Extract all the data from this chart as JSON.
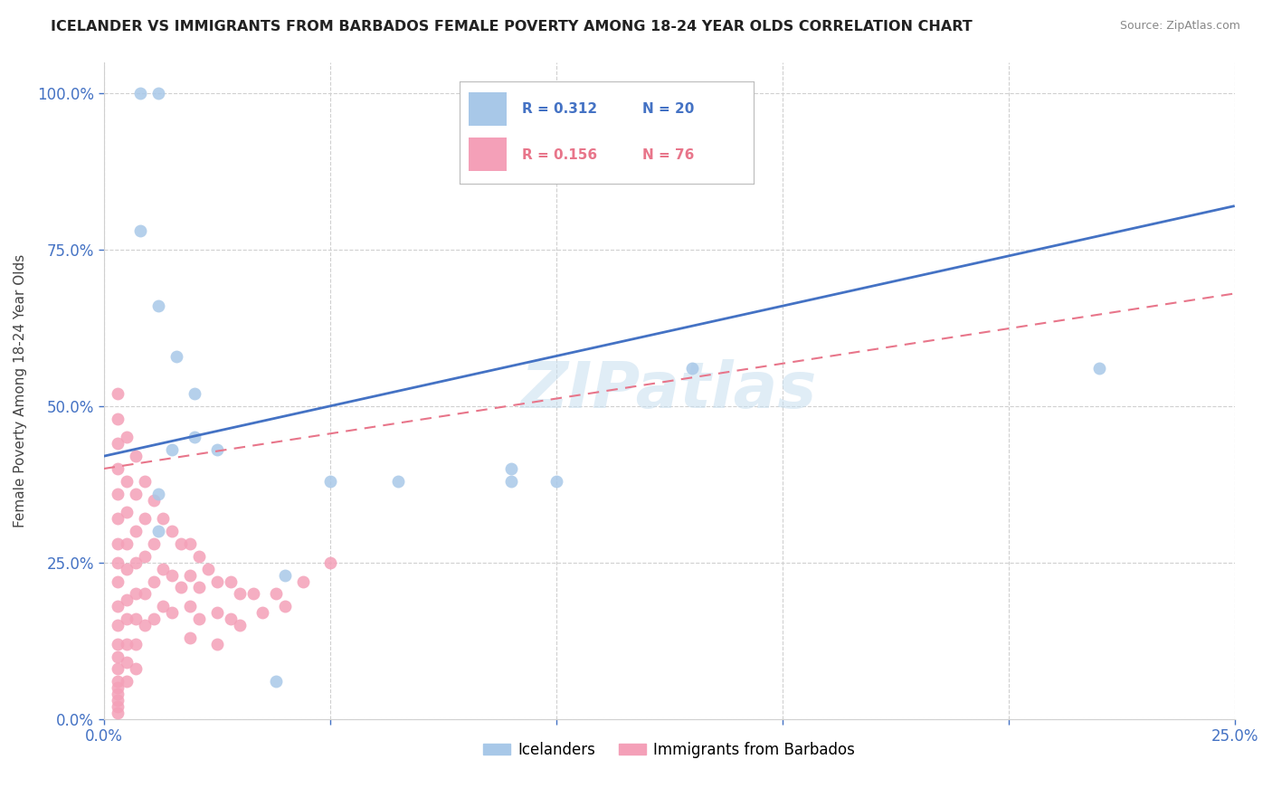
{
  "title": "ICELANDER VS IMMIGRANTS FROM BARBADOS FEMALE POVERTY AMONG 18-24 YEAR OLDS CORRELATION CHART",
  "source": "Source: ZipAtlas.com",
  "ylabel": "Female Poverty Among 18-24 Year Olds",
  "xlim": [
    0.0,
    0.25
  ],
  "ylim": [
    0.0,
    1.05
  ],
  "yticks": [
    0.0,
    0.25,
    0.5,
    0.75,
    1.0
  ],
  "xticks": [
    0.0,
    0.05,
    0.1,
    0.15,
    0.2,
    0.25
  ],
  "ytick_labels": [
    "0.0%",
    "25.0%",
    "50.0%",
    "75.0%",
    "100.0%"
  ],
  "xtick_labels": [
    "0.0%",
    "",
    "",
    "",
    "",
    "25.0%"
  ],
  "icelander_color": "#a8c8e8",
  "barbados_color": "#f4a0b8",
  "trendline_icelander_color": "#4472c4",
  "trendline_barbados_color": "#e8758a",
  "watermark": "ZIPatlas",
  "icelander_x": [
    0.008,
    0.012,
    0.008,
    0.012,
    0.016,
    0.02,
    0.02,
    0.025,
    0.015,
    0.012,
    0.012,
    0.1,
    0.13,
    0.09,
    0.09,
    0.04,
    0.05,
    0.065,
    0.22,
    0.038
  ],
  "icelander_y": [
    1.0,
    1.0,
    0.78,
    0.66,
    0.58,
    0.52,
    0.45,
    0.43,
    0.43,
    0.36,
    0.3,
    0.38,
    0.56,
    0.38,
    0.4,
    0.23,
    0.38,
    0.38,
    0.56,
    0.06
  ],
  "barbados_x": [
    0.003,
    0.003,
    0.003,
    0.003,
    0.003,
    0.003,
    0.003,
    0.003,
    0.003,
    0.003,
    0.003,
    0.003,
    0.003,
    0.003,
    0.003,
    0.003,
    0.003,
    0.003,
    0.003,
    0.003,
    0.005,
    0.005,
    0.005,
    0.005,
    0.005,
    0.005,
    0.005,
    0.005,
    0.005,
    0.005,
    0.007,
    0.007,
    0.007,
    0.007,
    0.007,
    0.007,
    0.007,
    0.007,
    0.009,
    0.009,
    0.009,
    0.009,
    0.009,
    0.011,
    0.011,
    0.011,
    0.011,
    0.013,
    0.013,
    0.013,
    0.015,
    0.015,
    0.015,
    0.017,
    0.017,
    0.019,
    0.019,
    0.019,
    0.019,
    0.021,
    0.021,
    0.021,
    0.023,
    0.025,
    0.025,
    0.025,
    0.028,
    0.028,
    0.03,
    0.03,
    0.033,
    0.035,
    0.038,
    0.04,
    0.044,
    0.05
  ],
  "barbados_y": [
    0.52,
    0.48,
    0.44,
    0.4,
    0.36,
    0.32,
    0.28,
    0.25,
    0.22,
    0.18,
    0.15,
    0.12,
    0.1,
    0.08,
    0.06,
    0.05,
    0.04,
    0.03,
    0.02,
    0.01,
    0.45,
    0.38,
    0.33,
    0.28,
    0.24,
    0.19,
    0.16,
    0.12,
    0.09,
    0.06,
    0.42,
    0.36,
    0.3,
    0.25,
    0.2,
    0.16,
    0.12,
    0.08,
    0.38,
    0.32,
    0.26,
    0.2,
    0.15,
    0.35,
    0.28,
    0.22,
    0.16,
    0.32,
    0.24,
    0.18,
    0.3,
    0.23,
    0.17,
    0.28,
    0.21,
    0.28,
    0.23,
    0.18,
    0.13,
    0.26,
    0.21,
    0.16,
    0.24,
    0.22,
    0.17,
    0.12,
    0.22,
    0.16,
    0.2,
    0.15,
    0.2,
    0.17,
    0.2,
    0.18,
    0.22,
    0.25
  ],
  "trendline_ice_x0": 0.0,
  "trendline_ice_x1": 0.25,
  "trendline_ice_y0": 0.42,
  "trendline_ice_y1": 0.82,
  "trendline_bar_x0": 0.0,
  "trendline_bar_x1": 0.25,
  "trendline_bar_y0": 0.4,
  "trendline_bar_y1": 0.68
}
